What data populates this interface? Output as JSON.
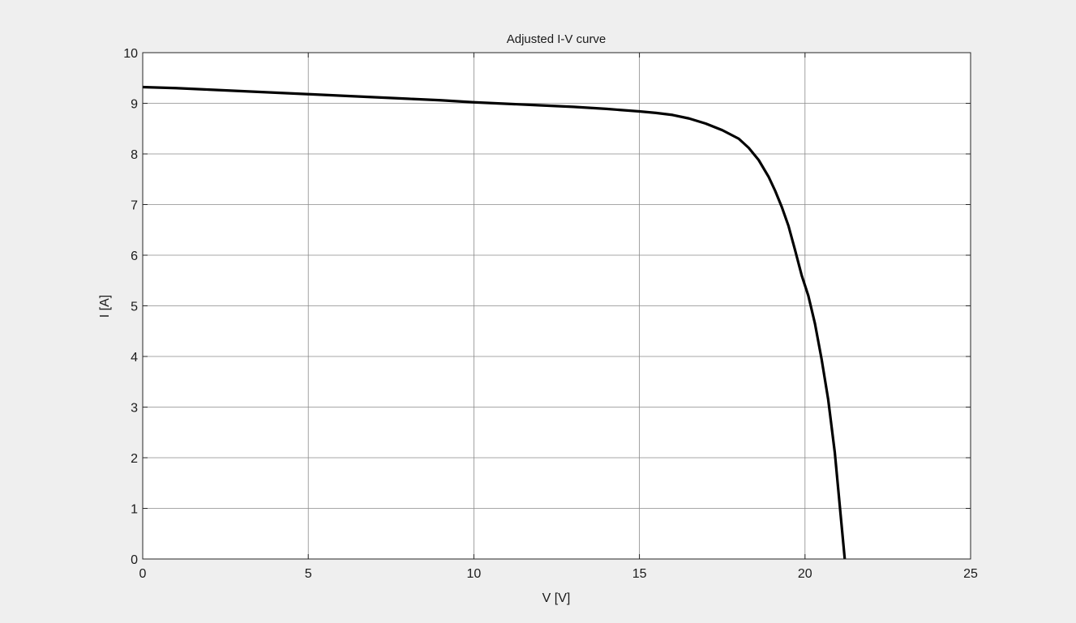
{
  "chart_data": {
    "type": "line",
    "title": "Adjusted I-V curve",
    "xlabel": "V [V]",
    "ylabel": "I [A]",
    "xlim": [
      0,
      25
    ],
    "ylim": [
      0,
      10
    ],
    "xticks": [
      0,
      5,
      10,
      15,
      20,
      25
    ],
    "yticks": [
      0,
      1,
      2,
      3,
      4,
      5,
      6,
      7,
      8,
      9,
      10
    ],
    "grid": true,
    "series": [
      {
        "color": "#000000",
        "x": [
          0,
          1,
          2,
          3,
          4,
          5,
          6,
          7,
          8,
          9,
          10,
          11,
          12,
          13,
          14,
          15,
          15.5,
          16,
          16.5,
          17,
          17.5,
          18,
          18.3,
          18.6,
          18.9,
          19.1,
          19.3,
          19.5,
          19.7,
          19.9,
          20.1,
          20.3,
          20.5,
          20.7,
          20.9,
          21.0,
          21.1,
          21.2
        ],
        "y": [
          9.32,
          9.3,
          9.27,
          9.24,
          9.21,
          9.18,
          9.15,
          9.12,
          9.09,
          9.06,
          9.02,
          8.99,
          8.96,
          8.93,
          8.89,
          8.84,
          8.81,
          8.77,
          8.7,
          8.6,
          8.47,
          8.3,
          8.12,
          7.88,
          7.55,
          7.27,
          6.95,
          6.58,
          6.1,
          5.6,
          5.2,
          4.65,
          3.95,
          3.15,
          2.1,
          1.4,
          0.7,
          0.0
        ]
      }
    ]
  }
}
